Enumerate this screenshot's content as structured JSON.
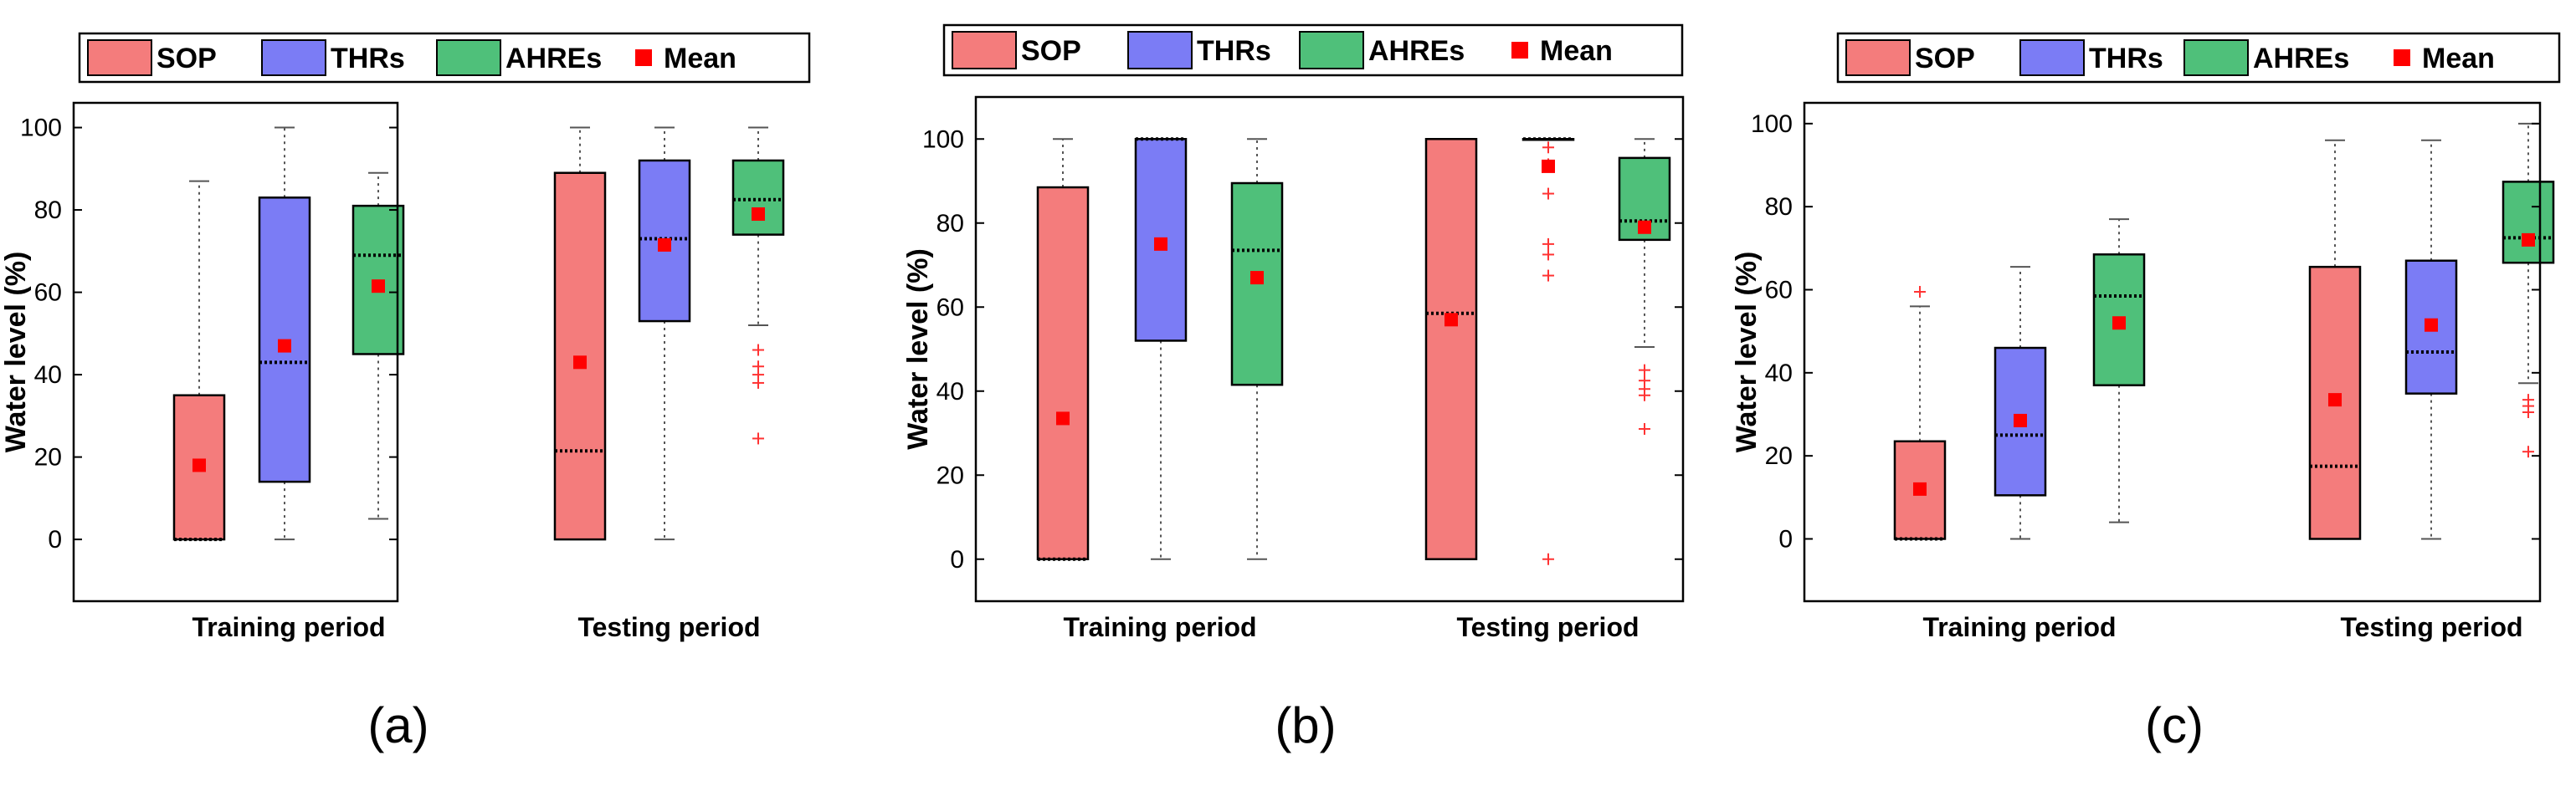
{
  "colors": {
    "SOP": "#f47c7c",
    "THRs": "#7b7cf5",
    "AHREs": "#4fc07a",
    "mean": "#ff0000",
    "outlier": "#ff3333"
  },
  "legend": {
    "entries": [
      {
        "key": "SOP",
        "label": "SOP"
      },
      {
        "key": "THRs",
        "label": "THRs"
      },
      {
        "key": "AHREs",
        "label": "AHREs"
      },
      {
        "key": "mean",
        "label": "Mean"
      }
    ]
  },
  "chart_data": [
    {
      "type": "box",
      "panel_label": "(a)",
      "ylabel": "Water level (%)",
      "ylim": [
        -15,
        106
      ],
      "yticks": [
        0,
        20,
        40,
        60,
        80,
        100
      ],
      "groups": [
        "Training period",
        "Testing period"
      ],
      "boxes": [
        {
          "group": "Training period",
          "series": "SOP",
          "lower_whisker": 0,
          "q1": 0,
          "median": 0,
          "q3": 35,
          "upper_whisker": 87,
          "mean": 18,
          "outliers": []
        },
        {
          "group": "Training period",
          "series": "THRs",
          "lower_whisker": 0,
          "q1": 14,
          "median": 43,
          "q3": 83,
          "upper_whisker": 100,
          "mean": 47,
          "outliers": []
        },
        {
          "group": "Training period",
          "series": "AHREs",
          "lower_whisker": 5,
          "q1": 45,
          "median": 69,
          "q3": 81,
          "upper_whisker": 89,
          "mean": 61.5,
          "outliers": []
        },
        {
          "group": "Testing period",
          "series": "SOP",
          "lower_whisker": 0,
          "q1": 0,
          "median": 21.5,
          "q3": 89,
          "upper_whisker": 100,
          "mean": 43,
          "outliers": []
        },
        {
          "group": "Testing period",
          "series": "THRs",
          "lower_whisker": 0,
          "q1": 53,
          "median": 73,
          "q3": 92,
          "upper_whisker": 100,
          "mean": 71.5,
          "outliers": []
        },
        {
          "group": "Testing period",
          "series": "AHREs",
          "lower_whisker": 52,
          "q1": 74,
          "median": 82.5,
          "q3": 92,
          "upper_whisker": 100,
          "mean": 79,
          "outliers": [
            46,
            42,
            40,
            38,
            24.5
          ]
        }
      ]
    },
    {
      "type": "box",
      "panel_label": "(b)",
      "ylabel": "Water level (%)",
      "ylim": [
        -10,
        110
      ],
      "yticks": [
        0,
        20,
        40,
        60,
        80,
        100
      ],
      "groups": [
        "Training period",
        "Testing period"
      ],
      "boxes": [
        {
          "group": "Training period",
          "series": "SOP",
          "lower_whisker": 0,
          "q1": 0,
          "median": 0,
          "q3": 88.5,
          "upper_whisker": 100,
          "mean": 33.5,
          "outliers": []
        },
        {
          "group": "Training period",
          "series": "THRs",
          "lower_whisker": 0,
          "q1": 52,
          "median": 100,
          "q3": 100,
          "upper_whisker": 100,
          "mean": 75,
          "outliers": []
        },
        {
          "group": "Training period",
          "series": "AHREs",
          "lower_whisker": 0,
          "q1": 41.5,
          "median": 73.5,
          "q3": 89.5,
          "upper_whisker": 100,
          "mean": 67,
          "outliers": []
        },
        {
          "group": "Testing period",
          "series": "SOP",
          "lower_whisker": 0,
          "q1": 0,
          "median": 58.5,
          "q3": 100,
          "upper_whisker": 100,
          "mean": 57,
          "outliers": []
        },
        {
          "group": "Testing period",
          "series": "THRs",
          "lower_whisker": 100,
          "q1": 100,
          "median": 100,
          "q3": 100,
          "upper_whisker": 100,
          "mean": 93.5,
          "outliers": [
            98,
            94,
            87,
            75,
            72.5,
            67.5,
            0
          ]
        },
        {
          "group": "Testing period",
          "series": "AHREs",
          "lower_whisker": 50.5,
          "q1": 76,
          "median": 80.5,
          "q3": 95.5,
          "upper_whisker": 100,
          "mean": 79,
          "outliers": [
            45,
            42.5,
            40.5,
            39,
            31
          ]
        }
      ]
    },
    {
      "type": "box",
      "panel_label": "(c)",
      "ylabel": "Water level (%)",
      "ylim": [
        -15,
        105
      ],
      "yticks": [
        0,
        20,
        40,
        60,
        80,
        100
      ],
      "groups": [
        "Training period",
        "Testing period"
      ],
      "boxes": [
        {
          "group": "Training period",
          "series": "SOP",
          "lower_whisker": 0,
          "q1": 0,
          "median": 0,
          "q3": 23.5,
          "upper_whisker": 56,
          "mean": 12,
          "outliers": [
            59.5
          ]
        },
        {
          "group": "Training period",
          "series": "THRs",
          "lower_whisker": 0,
          "q1": 10.5,
          "median": 25,
          "q3": 46,
          "upper_whisker": 65.5,
          "mean": 28.5,
          "outliers": []
        },
        {
          "group": "Training period",
          "series": "AHREs",
          "lower_whisker": 4,
          "q1": 37,
          "median": 58.5,
          "q3": 68.5,
          "upper_whisker": 77,
          "mean": 52,
          "outliers": []
        },
        {
          "group": "Testing period",
          "series": "SOP",
          "lower_whisker": 0,
          "q1": 0,
          "median": 17.5,
          "q3": 65.5,
          "upper_whisker": 96,
          "mean": 33.5,
          "outliers": []
        },
        {
          "group": "Testing period",
          "series": "THRs",
          "lower_whisker": 0,
          "q1": 35,
          "median": 45,
          "q3": 67,
          "upper_whisker": 96,
          "mean": 51.5,
          "outliers": []
        },
        {
          "group": "Testing period",
          "series": "AHREs",
          "lower_whisker": 37.5,
          "q1": 66.5,
          "median": 72.5,
          "q3": 86,
          "upper_whisker": 100,
          "mean": 72,
          "outliers": [
            33.5,
            32,
            30.5,
            21
          ]
        }
      ]
    }
  ]
}
